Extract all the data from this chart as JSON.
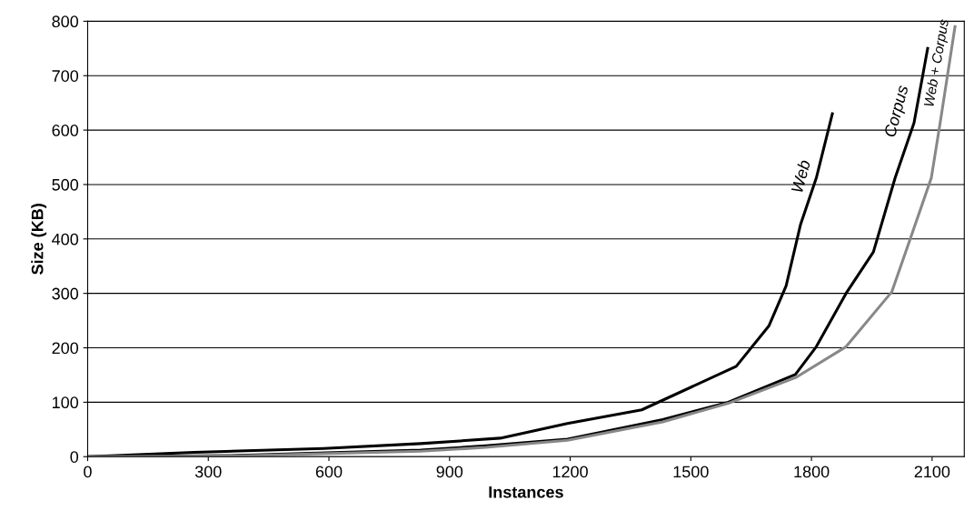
{
  "chart_data": {
    "type": "line",
    "xlabel": "Instances",
    "ylabel": "Size (KB)",
    "xlim": [
      0,
      2180
    ],
    "ylim": [
      0,
      800
    ],
    "xticks": [
      0,
      300,
      600,
      900,
      1200,
      1500,
      1800,
      2100
    ],
    "yticks": [
      0,
      100,
      200,
      300,
      400,
      500,
      600,
      700,
      800
    ],
    "grid": "y",
    "legend": false,
    "marker": "none",
    "line_style": "solid",
    "series": [
      {
        "name": "Web",
        "color": "#000000",
        "x": [
          0,
          264,
          587,
          828,
          1026,
          1193,
          1378,
          1613,
          1694,
          1737,
          1773,
          1812,
          1852
        ],
        "values": [
          0,
          8,
          15,
          24,
          34,
          61,
          86,
          166,
          240,
          314,
          427,
          512,
          630
        ]
      },
      {
        "name": "Corpus",
        "color": "#000000",
        "x": [
          0,
          345,
          828,
          990,
          1193,
          1430,
          1593,
          1760,
          1812,
          1886,
          1954,
          2008,
          2055,
          2089
        ],
        "values": [
          0,
          2,
          12,
          20,
          32,
          68,
          100,
          151,
          202,
          300,
          376,
          512,
          613,
          750
        ]
      },
      {
        "name": "Web + Corpus",
        "color": "#888888",
        "x": [
          0,
          345,
          828,
          990,
          1193,
          1430,
          1593,
          1760,
          1886,
          2000,
          2055,
          2098,
          2120,
          2157
        ],
        "values": [
          0,
          1,
          10,
          17,
          30,
          64,
          98,
          145,
          202,
          303,
          420,
          512,
          613,
          790
        ]
      }
    ]
  }
}
